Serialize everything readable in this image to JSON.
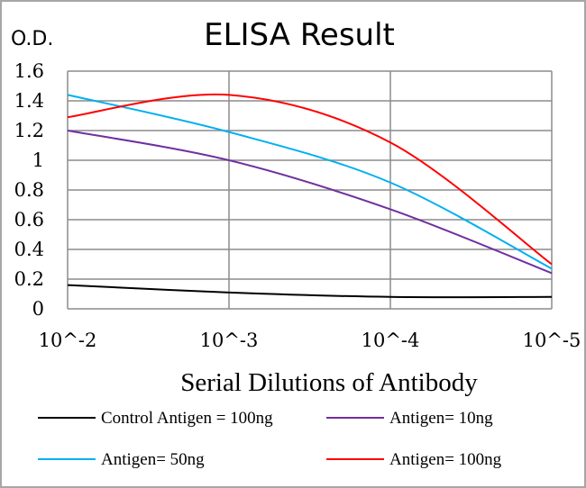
{
  "chart_data": {
    "type": "line",
    "title": "ELISA Result",
    "ylabel": "O.D.",
    "xlabel": "Serial Dilutions of Antibody",
    "x_scale": "log",
    "categories": [
      "10^-2",
      "10^-3",
      "10^-4",
      "10^-5"
    ],
    "x": [
      0,
      1,
      2,
      3
    ],
    "ylim": [
      0,
      1.6
    ],
    "yticks": [
      "0",
      "0.2",
      "0.4",
      "0.6",
      "0.8",
      "1",
      "1.2",
      "1.4",
      "1.6"
    ],
    "grid": "major gridlines on",
    "legend_position": "bottom",
    "series": [
      {
        "name": "Control Antigen = 100ng",
        "color": "#000000",
        "values": [
          0.16,
          0.11,
          0.08,
          0.08
        ]
      },
      {
        "name": "Antigen= 10ng",
        "color": "#7030a0",
        "values": [
          1.2,
          1.0,
          0.67,
          0.24
        ]
      },
      {
        "name": "Antigen= 50ng",
        "color": "#00b0f0",
        "values": [
          1.44,
          1.19,
          0.85,
          0.27
        ]
      },
      {
        "name": "Antigen= 100ng",
        "color": "#ff0000",
        "values": [
          1.29,
          1.44,
          1.12,
          0.3
        ]
      }
    ]
  }
}
